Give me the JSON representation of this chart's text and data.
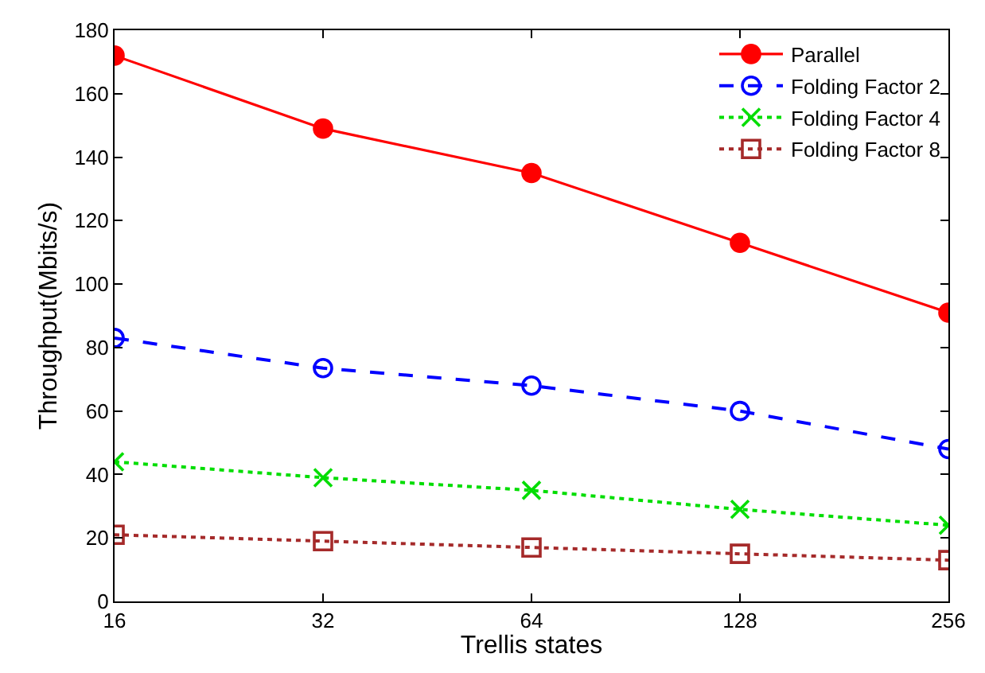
{
  "chart_data": {
    "type": "line",
    "xlabel": "Trellis states",
    "ylabel": "Throughput(Mbits/s)",
    "x": [
      16,
      32,
      64,
      128,
      256
    ],
    "log": "x",
    "xlim": [
      16,
      256
    ],
    "xticks": [
      16,
      32,
      64,
      128,
      256
    ],
    "ylim": [
      0,
      180
    ],
    "yticks": [
      0,
      20,
      40,
      60,
      80,
      100,
      120,
      140,
      160,
      180
    ],
    "legend": "top right",
    "series": [
      {
        "name": "Parallel",
        "color": "#ff0000",
        "values": [
          172,
          149,
          135,
          113,
          91
        ],
        "marker": "circle",
        "line_style": "solid"
      },
      {
        "name": "Folding Factor 2",
        "color": "#0000ff",
        "values": [
          83,
          73.5,
          68,
          60,
          48
        ],
        "marker": "circle-open",
        "line_style": "dashed"
      },
      {
        "name": "Folding Factor 4",
        "color": "#00dd00",
        "values": [
          44,
          39,
          35,
          29,
          24
        ],
        "marker": "cross",
        "line_style": "dotted"
      },
      {
        "name": "Folding Factor 8",
        "color": "#a52a2a",
        "values": [
          21,
          19,
          17,
          15,
          13
        ],
        "marker": "square-open",
        "line_style": "dotted"
      }
    ]
  }
}
